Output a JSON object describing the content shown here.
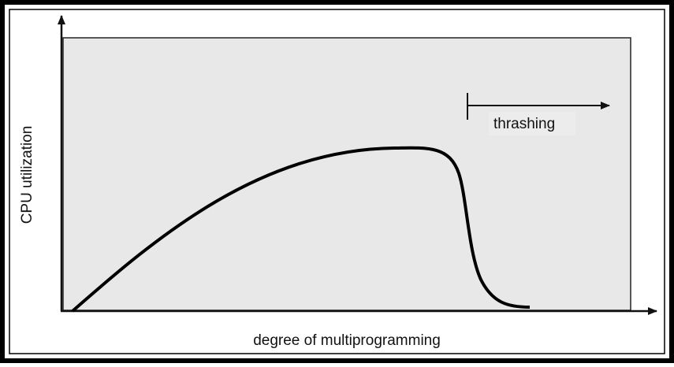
{
  "y_axis_label": "CPU utilization",
  "x_axis_label": "degree of multiprogramming",
  "annotation": "thrashing"
}
